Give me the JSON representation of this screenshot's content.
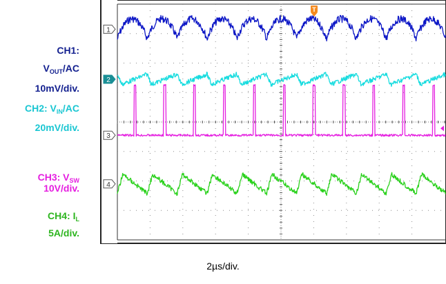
{
  "chart_data": {
    "type": "line",
    "x_division_label": "2µs/div.",
    "horizontal_divisions": 10,
    "vertical_divisions": 8,
    "visible_divisions": 9.7,
    "switching_cycles_visible": 11,
    "trigger_marker": "T",
    "series": [
      {
        "channel": "1",
        "name_parts": {
          "prefix": "CH1:",
          "main": "V",
          "sub": "OUT",
          "suffix": "/AC"
        },
        "scale": "10mV/div.",
        "color": "#0d17c6",
        "waveform": "ripple-arch",
        "baseline_div": 3.15,
        "peak_to_peak_div": 0.7
      },
      {
        "channel": "2",
        "name_parts": {
          "prefix": "CH2: ",
          "main": "V",
          "sub": "IN",
          "suffix": "/AC"
        },
        "scale": "20mV/div.",
        "color": "#18dcdf",
        "waveform": "sawtooth-small",
        "baseline_div": 1.45,
        "peak_to_peak_div": 0.35
      },
      {
        "channel": "3",
        "name_parts": {
          "prefix": "CH3: ",
          "main": "V",
          "sub": "SW",
          "suffix": ""
        },
        "scale": "10V/div.",
        "color": "#e51ee0",
        "waveform": "pulse",
        "baseline_div": -0.45,
        "peak_to_peak_div": 1.7,
        "pulse_width_fraction": 0.07
      },
      {
        "channel": "4",
        "name_parts": {
          "prefix": "CH4: ",
          "main": "I",
          "sub": "L",
          "suffix": ""
        },
        "scale": "5A/div.",
        "color": "#2ad11c",
        "waveform": "triangle",
        "baseline_div": -2.1,
        "peak_to_peak_div": 0.65
      }
    ]
  }
}
